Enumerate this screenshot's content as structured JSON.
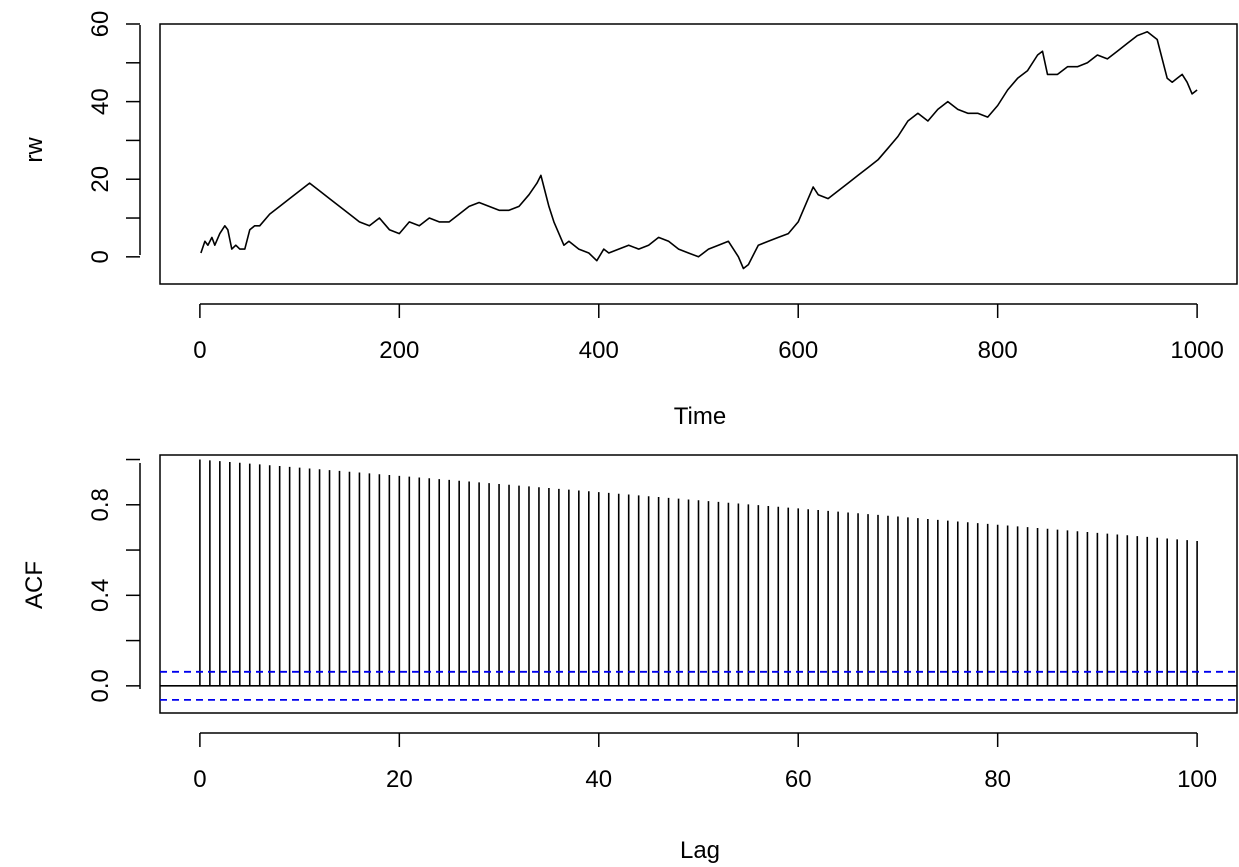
{
  "chart_data": [
    {
      "type": "line",
      "title": "",
      "xlabel": "Time",
      "ylabel": "rw",
      "xlim": [
        -40,
        1040
      ],
      "ylim": [
        -7,
        60
      ],
      "xticks": [
        0,
        200,
        400,
        600,
        800,
        1000
      ],
      "xtick_labels": [
        "0",
        "200",
        "400",
        "600",
        "800",
        "1000"
      ],
      "yticks": [
        0,
        20,
        40,
        60
      ],
      "ytick_labels": [
        "0",
        "20",
        "40",
        "60"
      ],
      "ytick_minor": [
        10,
        30,
        50
      ],
      "grid": false,
      "legend": "none",
      "color": "#000000",
      "series": [
        {
          "x": [
            1,
            5,
            8,
            12,
            15,
            20,
            25,
            28,
            32,
            36,
            40,
            45,
            50,
            55,
            60,
            70,
            80,
            90,
            100,
            110,
            120,
            130,
            140,
            150,
            160,
            170,
            180,
            190,
            200,
            210,
            220,
            230,
            240,
            250,
            260,
            270,
            280,
            290,
            300,
            310,
            320,
            330,
            338,
            342,
            345,
            350,
            355,
            360,
            365,
            370,
            380,
            390,
            398,
            405,
            410,
            420,
            430,
            440,
            450,
            460,
            470,
            480,
            490,
            500,
            510,
            520,
            530,
            540,
            545,
            550,
            560,
            570,
            580,
            590,
            600,
            610,
            615,
            620,
            630,
            640,
            650,
            660,
            670,
            680,
            690,
            700,
            710,
            720,
            730,
            740,
            750,
            760,
            770,
            780,
            790,
            800,
            810,
            820,
            830,
            840,
            845,
            850,
            860,
            870,
            880,
            890,
            900,
            910,
            920,
            930,
            940,
            950,
            960,
            965,
            970,
            975,
            980,
            985,
            990,
            995,
            1000
          ],
          "values": [
            1,
            4,
            3,
            5,
            3,
            6,
            8,
            7,
            2,
            3,
            2,
            2,
            7,
            8,
            8,
            11,
            13,
            15,
            17,
            19,
            17,
            15,
            13,
            11,
            9,
            8,
            10,
            7,
            6,
            9,
            8,
            10,
            9,
            9,
            11,
            13,
            14,
            13,
            12,
            12,
            13,
            16,
            19,
            21,
            18,
            13,
            9,
            6,
            3,
            4,
            2,
            1,
            -1,
            2,
            1,
            2,
            3,
            2,
            3,
            5,
            4,
            2,
            1,
            0,
            2,
            3,
            4,
            0,
            -3,
            -2,
            3,
            4,
            5,
            6,
            9,
            15,
            18,
            16,
            15,
            17,
            19,
            21,
            23,
            25,
            28,
            31,
            35,
            37,
            35,
            38,
            40,
            38,
            37,
            37,
            36,
            39,
            43,
            46,
            48,
            52,
            53,
            47,
            47,
            49,
            49,
            50,
            52,
            51,
            53,
            55,
            57,
            58,
            56,
            51,
            46,
            45,
            46,
            47,
            45,
            42,
            43
          ]
        }
      ]
    },
    {
      "type": "bar",
      "title": "",
      "xlabel": "Lag",
      "ylabel": "ACF",
      "xlim": [
        -4,
        104
      ],
      "ylim": [
        -0.12,
        1.02
      ],
      "xticks": [
        0,
        20,
        40,
        60,
        80,
        100
      ],
      "xtick_labels": [
        "0",
        "20",
        "40",
        "60",
        "80",
        "100"
      ],
      "yticks": [
        0.0,
        0.4,
        0.8
      ],
      "ytick_labels": [
        "0.0",
        "0.4",
        "0.8"
      ],
      "ytick_minor": [
        0.2,
        0.6,
        1.0
      ],
      "grid": false,
      "legend": "none",
      "color": "#000000",
      "confidence_bound": 0.062,
      "confidence_color": "#0000ee",
      "lags": {
        "start": 0,
        "end": 100,
        "step": 1
      },
      "acf_model": {
        "at_lag_0": 1.0,
        "at_lag_100": 0.64,
        "form": "linear"
      }
    }
  ]
}
